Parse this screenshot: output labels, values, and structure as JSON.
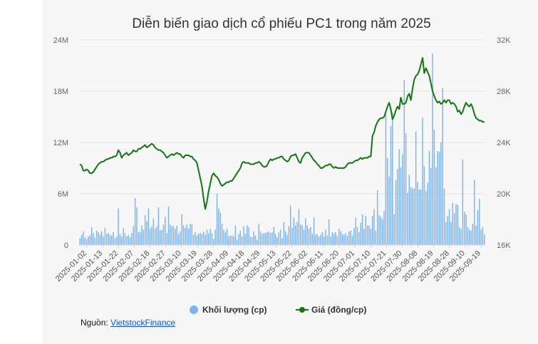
{
  "chart_data": {
    "type": "bar+line",
    "title": "Diễn biến giao dịch cổ phiếu PC1 trong năm 2025",
    "left_axis": {
      "ticks": [
        "0",
        "6M",
        "12M",
        "18M",
        "24M"
      ],
      "range": [
        0,
        24000000
      ]
    },
    "right_axis": {
      "ticks": [
        "16K",
        "20K",
        "24K",
        "28K",
        "32K"
      ],
      "range": [
        16000,
        32000
      ]
    },
    "x_tick_labels": [
      "2025-01-02",
      "2025-01-13",
      "2025-01-22",
      "2025-02-07",
      "2025-02-18",
      "2025-02-27",
      "2025-03-10",
      "2025-03-19",
      "2025-03-28",
      "2025-04-09",
      "2025-04-18",
      "2025-04-29",
      "2025-05-13",
      "2025-05-22",
      "2025-06-02",
      "2025-06-11",
      "2025-06-20",
      "2025-07-01",
      "2025-07-10",
      "2025-07-21",
      "2025-07-30",
      "2025-08-08",
      "2025-08-19",
      "2025-08-28",
      "2025-09-10",
      "2025-09-19"
    ],
    "grid": true,
    "legend_position": "bottom",
    "series": [
      {
        "name": "Khối lượng (cp)",
        "type": "bar",
        "axis": "left",
        "color": "#7cb5ec",
        "values": [
          0.8,
          1.2,
          1.6,
          0.9,
          0.7,
          1.0,
          1.1,
          2.1,
          1.4,
          0.9,
          1.7,
          1.5,
          1.2,
          1.6,
          1.0,
          2.0,
          1.3,
          1.4,
          1.2,
          1.1,
          1.5,
          0.8,
          1.0,
          4.3,
          1.3,
          1.0,
          2.0,
          1.4,
          1.0,
          1.2,
          0.9,
          1.4,
          2.2,
          5.5,
          4.4,
          1.5,
          1.5,
          2.3,
          1.8,
          3.5,
          2.8,
          4.3,
          1.9,
          2.2,
          3.1,
          1.9,
          2.2,
          4.4,
          1.7,
          1.8,
          2.4,
          3.3,
          1.4,
          4.5,
          2.4,
          2.2,
          2.2,
          1.9,
          2.3,
          1.3,
          1.6,
          3.6,
          2.3,
          2.0,
          2.4,
          1.9,
          2.5,
          2.4,
          1.2,
          1.5,
          1.1,
          1.3,
          1.4,
          1.3,
          1.6,
          1.2,
          1.8,
          1.4,
          1.9,
          1.4,
          0.7,
          1.8,
          6.0,
          4.3,
          3.8,
          2.5,
          1.8,
          1.5,
          1.9,
          1.0,
          1.1,
          1.1,
          1.0,
          2.3,
          0.6,
          1.3,
          1.7,
          1.0,
          2.2,
          1.3,
          2.3,
          2.1,
          1.0,
          0.9,
          1.6,
          1.1,
          0.6,
          2.5,
          1.6,
          1.3,
          1.4,
          1.4,
          1.5,
          1.6,
          1.4,
          1.5,
          2.1,
          1.3,
          0.9,
          1.5,
          1.8,
          0.8,
          2.7,
          1.6,
          1.2,
          2.2,
          4.6,
          2.0,
          3.2,
          2.3,
          2.7,
          4.2,
          2.4,
          2.3,
          1.8,
          3.1,
          2.3,
          1.9,
          2.1,
          1.3,
          3.2,
          1.2,
          1.3,
          1.0,
          1.2,
          1.5,
          1.0,
          1.8,
          1.1,
          3.0,
          1.0,
          1.5,
          1.3,
          1.5,
          1.1,
          1.9,
          1.6,
          1.3,
          1.2,
          1.4,
          1.1,
          1.6,
          1.7,
          1.1,
          2.0,
          3.2,
          2.1,
          1.5,
          2.6,
          3.6,
          1.9,
          3.4,
          2.3,
          2.3,
          1.9,
          3.4,
          4.2,
          1.7,
          6.4,
          3.5,
          3.3,
          3.0,
          4.0,
          15.3,
          10.2,
          8.0,
          13.9,
          15.5,
          3.6,
          7.6,
          8.9,
          11.2,
          9.1,
          10.6,
          19.3,
          13.1,
          6.1,
          8.2,
          6.8,
          6.6,
          6.6,
          13.3,
          7.4,
          6.5,
          6.5,
          14.9,
          9.2,
          6.3,
          7.3,
          11.0,
          9.0,
          22.4,
          13.5,
          9.1,
          11.0,
          10.9,
          12.0,
          18.4,
          6.6,
          2.7,
          3.4,
          4.2,
          2.7,
          4.9,
          3.7,
          4.8,
          4.7,
          2.1,
          1.8,
          10.0,
          3.9,
          3.6,
          2.1,
          1.8,
          1.7,
          2.5,
          7.6,
          2.3,
          4.1,
          5.4,
          1.8,
          2.1,
          1.2
        ],
        "unit": "million shares"
      },
      {
        "name": "Giá (đồng/cp)",
        "type": "line",
        "axis": "right",
        "color": "#117711",
        "values": [
          22.3,
          22.2,
          21.8,
          21.8,
          21.9,
          21.8,
          21.6,
          21.6,
          21.7,
          21.9,
          22.1,
          22.3,
          22.4,
          22.5,
          22.5,
          22.6,
          22.7,
          22.7,
          22.8,
          22.8,
          22.9,
          22.9,
          23.0,
          23.4,
          23.2,
          22.8,
          23.0,
          23.1,
          23.2,
          23.0,
          23.1,
          23.2,
          23.4,
          23.3,
          23.3,
          23.5,
          23.5,
          23.6,
          23.7,
          23.8,
          23.6,
          23.7,
          23.8,
          23.9,
          23.8,
          23.6,
          23.5,
          23.4,
          23.4,
          23.3,
          23.2,
          23.0,
          22.8,
          22.9,
          23.0,
          23.1,
          23.0,
          23.1,
          23.2,
          23.1,
          23.1,
          22.9,
          22.8,
          23.0,
          23.0,
          23.0,
          22.9,
          22.9,
          22.7,
          22.6,
          22.4,
          21.8,
          21.2,
          20.6,
          19.6,
          18.8,
          19.4,
          20.2,
          20.8,
          21.4,
          21.6,
          21.4,
          21.3,
          21.1,
          20.8,
          20.6,
          20.7,
          20.8,
          20.9,
          20.9,
          21.0,
          21.0,
          21.2,
          21.4,
          21.6,
          21.8,
          22.0,
          22.4,
          22.5,
          22.4,
          22.4,
          22.4,
          22.3,
          22.3,
          22.3,
          22.4,
          22.4,
          22.5,
          22.4,
          22.2,
          22.1,
          22.1,
          22.2,
          22.5,
          22.7,
          22.6,
          22.7,
          22.7,
          22.8,
          22.8,
          22.9,
          22.9,
          22.7,
          22.6,
          22.5,
          22.6,
          22.9,
          23.0,
          23.0,
          23.1,
          22.8,
          22.5,
          22.4,
          22.8,
          23.0,
          23.2,
          23.2,
          23.2,
          23.0,
          22.8,
          22.6,
          22.5,
          22.3,
          22.2,
          22.0,
          22.0,
          22.1,
          22.2,
          22.2,
          22.3,
          22.3,
          22.1,
          22.0,
          22.1,
          22.0,
          22.0,
          22.0,
          22.0,
          22.0,
          22.1,
          22.3,
          22.4,
          22.4,
          22.4,
          22.5,
          22.6,
          22.6,
          22.7,
          22.8,
          22.7,
          22.8,
          22.8,
          22.8,
          22.9,
          22.9,
          24.5,
          24.8,
          25.3,
          25.6,
          25.8,
          25.9,
          25.9,
          26.0,
          26.4,
          26.8,
          27.1,
          26.6,
          25.8,
          26.1,
          26.5,
          26.8,
          26.6,
          27.5,
          27.0,
          27.0,
          27.1,
          27.6,
          27.8,
          27.3,
          28.2,
          28.9,
          29.2,
          29.3,
          29.6,
          30.1,
          30.6,
          29.4,
          29.8,
          29.5,
          29.2,
          28.6,
          28.0,
          27.6,
          27.3,
          27.1,
          27.2,
          27.0,
          27.1,
          27.3,
          27.1,
          27.3,
          27.3,
          27.0,
          27.1,
          27.0,
          26.8,
          26.4,
          26.5,
          26.2,
          26.4,
          26.8,
          27.1,
          26.9,
          26.8,
          27.0,
          26.7,
          26.2,
          25.9,
          25.8,
          25.7,
          25.7,
          25.6,
          25.6
        ],
        "unit": "thousand VND"
      }
    ]
  },
  "legend": {
    "volume_label": "Khối lượng (cp)",
    "price_label": "Giá (đồng/cp)"
  },
  "source": {
    "prefix": "Nguồn: ",
    "link_text": "VietstockFinance"
  }
}
